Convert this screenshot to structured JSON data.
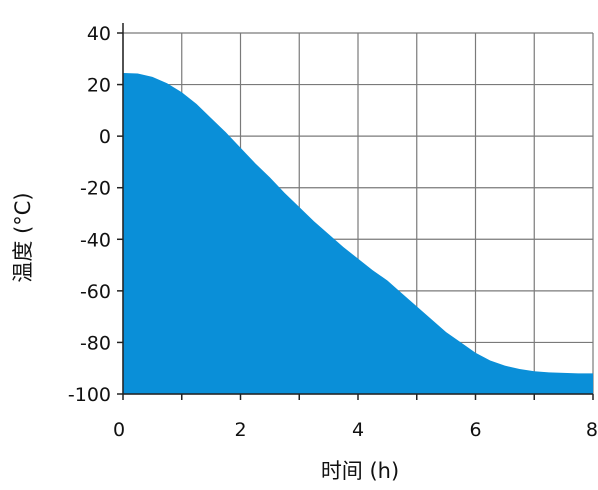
{
  "chart_data": {
    "type": "area",
    "xlabel": "时间 (h)",
    "ylabel": "温度 (°C)",
    "xlim": [
      0,
      8
    ],
    "ylim": [
      -100,
      40
    ],
    "xticks": [
      0,
      2,
      4,
      6,
      8
    ],
    "yticks": [
      40,
      20,
      0,
      -20,
      -40,
      -60,
      -80,
      -100
    ],
    "grid": true,
    "grid_x_step": 1,
    "grid_y_step": 20,
    "fill_color": "#0a8fd8",
    "grid_color": "#7a7a7a",
    "series": [
      {
        "x": [
          0,
          0.25,
          0.5,
          0.75,
          1.0,
          1.25,
          1.5,
          1.75,
          2.0,
          2.25,
          2.5,
          2.75,
          3.0,
          3.25,
          3.5,
          3.75,
          4.0,
          4.25,
          4.5,
          4.75,
          5.0,
          5.25,
          5.5,
          5.75,
          6.0,
          6.25,
          6.5,
          6.75,
          7.0,
          7.25,
          7.5,
          7.75,
          8.0
        ],
        "y": [
          24.5,
          24.3,
          23.0,
          20.5,
          17.0,
          12.5,
          7.0,
          1.5,
          -4.5,
          -10.5,
          -16.0,
          -22.0,
          -27.5,
          -33.0,
          -38.0,
          -43.0,
          -47.5,
          -52.0,
          -56.0,
          -61.0,
          -66.0,
          -71.0,
          -76.0,
          -80.0,
          -84.0,
          -87.0,
          -89.0,
          -90.3,
          -91.2,
          -91.6,
          -91.8,
          -92.0,
          -92.0
        ]
      }
    ]
  }
}
